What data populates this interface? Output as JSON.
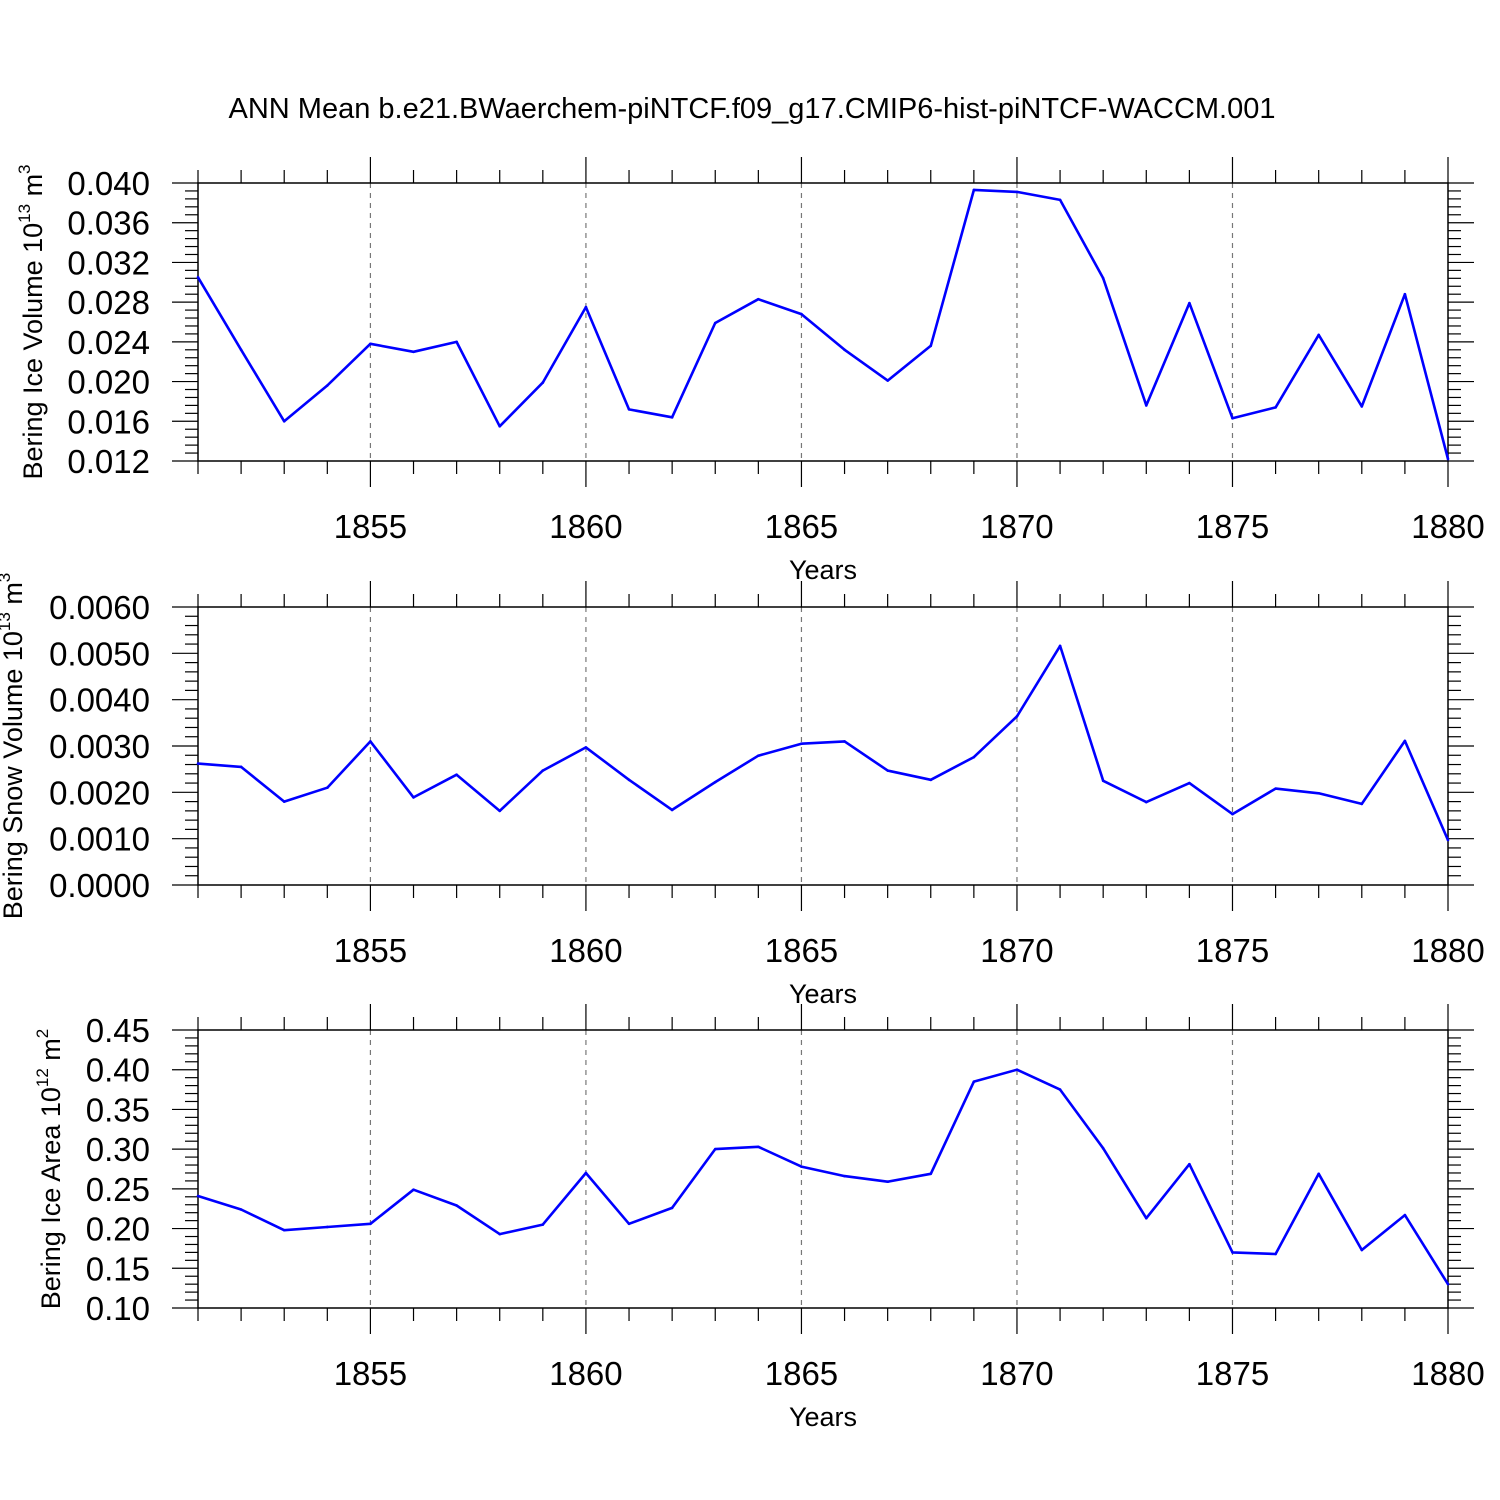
{
  "title": "ANN Mean b.e21.BWaerchem-piNTCF.f09_g17.CMIP6-hist-piNTCF-WACCM.001",
  "line_color": "#0000ff",
  "chart_data": [
    {
      "type": "line",
      "ylabel": {
        "base": "Bering Ice Volume 10",
        "exp1": "13",
        "mid": " m",
        "exp2": "3"
      },
      "xlabel": "Years",
      "xlim": [
        1851,
        1880
      ],
      "ylim": [
        0.012,
        0.04
      ],
      "yticks": [
        "0.012",
        "0.016",
        "0.020",
        "0.024",
        "0.028",
        "0.032",
        "0.036",
        "0.040"
      ],
      "xticks": [
        "1855",
        "1860",
        "1865",
        "1870",
        "1875",
        "1880"
      ],
      "grid": "vertical dashed at major x ticks",
      "x": [
        1851,
        1852,
        1853,
        1854,
        1855,
        1856,
        1857,
        1858,
        1859,
        1860,
        1861,
        1862,
        1863,
        1864,
        1865,
        1866,
        1867,
        1868,
        1869,
        1870,
        1871,
        1872,
        1873,
        1874,
        1875,
        1876,
        1877,
        1878,
        1879,
        1880
      ],
      "values": [
        0.0305,
        0.0232,
        0.016,
        0.0196,
        0.0238,
        0.023,
        0.024,
        0.0155,
        0.0199,
        0.0275,
        0.0172,
        0.0164,
        0.0259,
        0.0283,
        0.0268,
        0.0232,
        0.0201,
        0.0236,
        0.0393,
        0.0391,
        0.0383,
        0.0304,
        0.0176,
        0.0279,
        0.0163,
        0.0174,
        0.0247,
        0.0175,
        0.0288,
        0.0122
      ]
    },
    {
      "type": "line",
      "ylabel": {
        "base": "Bering Snow Volume 10",
        "exp1": "13",
        "mid": " m",
        "exp2": "3"
      },
      "xlabel": "Years",
      "xlim": [
        1851,
        1880
      ],
      "ylim": [
        0.0,
        0.006
      ],
      "yticks": [
        "0.0000",
        "0.0010",
        "0.0020",
        "0.0030",
        "0.0040",
        "0.0050",
        "0.0060"
      ],
      "xticks": [
        "1855",
        "1860",
        "1865",
        "1870",
        "1875",
        "1880"
      ],
      "grid": "vertical dashed at major x ticks",
      "x": [
        1851,
        1852,
        1853,
        1854,
        1855,
        1856,
        1857,
        1858,
        1859,
        1860,
        1861,
        1862,
        1863,
        1864,
        1865,
        1866,
        1867,
        1868,
        1869,
        1870,
        1871,
        1872,
        1873,
        1874,
        1875,
        1876,
        1877,
        1878,
        1879,
        1880
      ],
      "values": [
        0.00262,
        0.00255,
        0.0018,
        0.0021,
        0.0031,
        0.00189,
        0.00238,
        0.0016,
        0.00247,
        0.00297,
        0.00227,
        0.00162,
        0.00222,
        0.00279,
        0.00305,
        0.0031,
        0.00247,
        0.00227,
        0.00276,
        0.00364,
        0.00516,
        0.00225,
        0.00179,
        0.0022,
        0.00153,
        0.00208,
        0.00198,
        0.00175,
        0.00311,
        0.00097
      ]
    },
    {
      "type": "line",
      "ylabel": {
        "base": "Bering Ice Area 10",
        "exp1": "12",
        "mid": " m",
        "exp2": "2"
      },
      "xlabel": "Years",
      "xlim": [
        1851,
        1880
      ],
      "ylim": [
        0.1,
        0.45
      ],
      "yticks": [
        "0.10",
        "0.15",
        "0.20",
        "0.25",
        "0.30",
        "0.35",
        "0.40",
        "0.45"
      ],
      "xticks": [
        "1855",
        "1860",
        "1865",
        "1870",
        "1875",
        "1880"
      ],
      "grid": "vertical dashed at major x ticks",
      "x": [
        1851,
        1852,
        1853,
        1854,
        1855,
        1856,
        1857,
        1858,
        1859,
        1860,
        1861,
        1862,
        1863,
        1864,
        1865,
        1866,
        1867,
        1868,
        1869,
        1870,
        1871,
        1872,
        1873,
        1874,
        1875,
        1876,
        1877,
        1878,
        1879,
        1880
      ],
      "values": [
        0.241,
        0.224,
        0.198,
        0.202,
        0.206,
        0.249,
        0.229,
        0.193,
        0.205,
        0.27,
        0.206,
        0.226,
        0.3,
        0.303,
        0.278,
        0.266,
        0.259,
        0.269,
        0.385,
        0.4,
        0.375,
        0.301,
        0.213,
        0.281,
        0.17,
        0.168,
        0.269,
        0.173,
        0.217,
        0.13
      ]
    }
  ]
}
